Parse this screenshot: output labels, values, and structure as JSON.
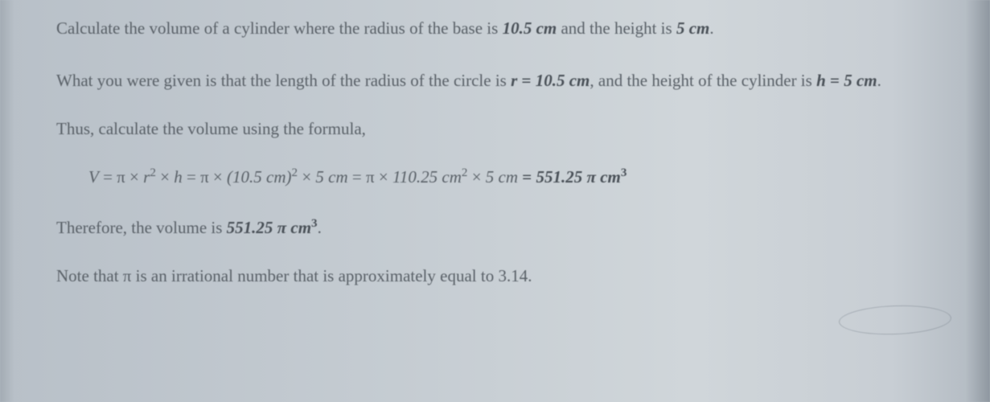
{
  "page": {
    "background_color": "#c5ccd2",
    "text_color": "#5a6168",
    "bold_color": "#4a5158",
    "font_family": "Georgia, 'Times New Roman', serif",
    "body_fontsize": 21,
    "line_height": 1.65
  },
  "p1": {
    "t1": "Calculate the volume of a cylinder where the radius of the base is ",
    "v1": "10.5 cm",
    "t2": " and the height is ",
    "v2": "5 cm",
    "t3": "."
  },
  "p2": {
    "t1": "What you were given is that the length of the radius of the circle is ",
    "var1": "r",
    "eq1": " = ",
    "v1": "10.5 cm",
    "t2": ", and the height of the cylinder is ",
    "var2": "h",
    "eq2": " = ",
    "v2": "5 cm",
    "t3": "."
  },
  "p3": {
    "t1": "Thus, calculate the volume using the formula,"
  },
  "formula": {
    "lhs_V": "V",
    "eq": " = ",
    "pi": "π",
    "times": " × ",
    "r": "r",
    "exp2": "2",
    "h": "h",
    "r_val": "(10.5 cm)",
    "h_val": "5 cm",
    "mid_val": "110.25 cm",
    "result": "551.25 π cm",
    "exp3": "3"
  },
  "p4": {
    "t1": "Therefore, the volume is ",
    "v1": "551.25 π cm",
    "exp3": "3",
    "t2": "."
  },
  "p5": {
    "t1": "Note that π is an irrational number that is approximately equal to 3.14."
  }
}
